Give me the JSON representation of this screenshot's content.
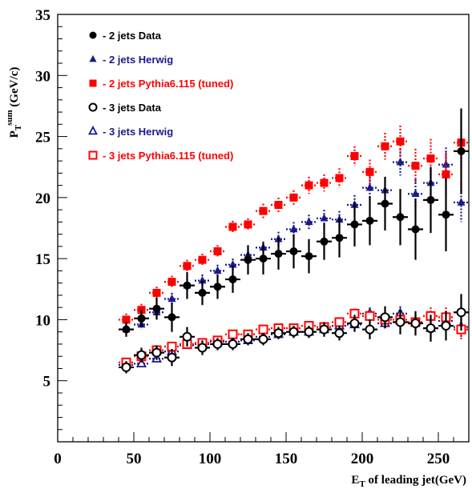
{
  "chart_data": {
    "type": "scatter",
    "xlabel": {
      "main": "E",
      "sub": "T",
      "rest": " of leading jet(GeV)"
    },
    "ylabel": {
      "main": "P",
      "sub": "T",
      "sup": "sum",
      "rest": " (GeV/c)"
    },
    "xlim": [
      0,
      270
    ],
    "ylim": [
      0,
      35
    ],
    "xticks": [
      0,
      50,
      100,
      150,
      200,
      250
    ],
    "yticks": [
      5,
      10,
      15,
      20,
      25,
      30,
      35
    ],
    "grid": false,
    "legend_position": "top-left",
    "colors": {
      "data": "#000000",
      "herwig": "#1a1a8c",
      "pythia": "#ff0000"
    },
    "series": [
      {
        "name": "- 2 jets Data",
        "marker": "filled-circle",
        "color": "#000000",
        "line": "solid",
        "x": [
          45,
          55,
          65,
          75,
          85,
          95,
          105,
          115,
          125,
          135,
          145,
          155,
          165,
          175,
          185,
          195,
          205,
          215,
          225,
          235,
          245,
          255,
          265
        ],
        "y": [
          9.2,
          10.1,
          10.9,
          10.2,
          12.8,
          12.2,
          12.7,
          13.3,
          14.9,
          15.0,
          15.4,
          15.6,
          15.2,
          16.4,
          16.7,
          17.8,
          18.1,
          19.5,
          18.4,
          17.4,
          19.8,
          18.6,
          23.8
        ],
        "err": [
          0.6,
          0.7,
          0.9,
          1.2,
          1.1,
          1.0,
          1.0,
          1.1,
          1.2,
          1.3,
          1.3,
          1.4,
          1.4,
          1.5,
          1.6,
          1.8,
          2.0,
          2.2,
          2.3,
          2.5,
          2.7,
          3.0,
          3.5
        ]
      },
      {
        "name": "- 2 jets Herwig",
        "marker": "filled-triangle",
        "color": "#1a1a8c",
        "line": "dotted",
        "x": [
          45,
          55,
          65,
          75,
          85,
          95,
          105,
          115,
          125,
          135,
          145,
          155,
          165,
          175,
          185,
          195,
          205,
          215,
          225,
          235,
          245,
          255,
          265
        ],
        "y": [
          9.2,
          9.6,
          10.6,
          11.7,
          12.8,
          13.2,
          14.0,
          14.5,
          15.3,
          15.9,
          16.6,
          17.4,
          18.0,
          18.3,
          18.2,
          19.4,
          20.8,
          20.6,
          22.9,
          20.3,
          21.2,
          22.7,
          19.6
        ],
        "err": [
          0.4,
          0.4,
          0.5,
          0.5,
          0.5,
          0.5,
          0.5,
          0.5,
          0.5,
          0.5,
          0.6,
          0.6,
          0.6,
          0.7,
          0.7,
          0.8,
          0.9,
          1.0,
          1.1,
          1.2,
          1.3,
          1.4,
          1.6
        ]
      },
      {
        "name": "- 2 jets Pythia6.115 (tuned)",
        "marker": "filled-square",
        "color": "#ff0000",
        "line": "dotted",
        "x": [
          45,
          55,
          65,
          75,
          85,
          95,
          105,
          115,
          125,
          135,
          145,
          155,
          165,
          175,
          185,
          195,
          205,
          215,
          225,
          235,
          245,
          255,
          265
        ],
        "y": [
          10.0,
          10.8,
          12.2,
          13.1,
          14.4,
          14.9,
          15.6,
          17.6,
          17.8,
          18.9,
          19.4,
          20.0,
          21.0,
          21.2,
          21.6,
          23.4,
          22.1,
          24.2,
          24.6,
          22.6,
          23.2,
          21.9,
          24.5
        ],
        "err": [
          0.5,
          0.5,
          0.5,
          0.5,
          0.5,
          0.5,
          0.5,
          0.5,
          0.5,
          0.6,
          0.6,
          0.6,
          0.7,
          0.7,
          0.8,
          0.8,
          1.0,
          1.1,
          1.3,
          1.4,
          1.6,
          1.8,
          2.2
        ]
      },
      {
        "name": "- 3 jets Data",
        "marker": "open-circle",
        "color": "#000000",
        "line": "solid",
        "x": [
          45,
          55,
          65,
          75,
          85,
          95,
          105,
          115,
          125,
          135,
          145,
          155,
          165,
          175,
          185,
          195,
          205,
          215,
          225,
          235,
          245,
          255,
          265
        ],
        "y": [
          6.1,
          7.1,
          7.3,
          6.9,
          8.6,
          7.7,
          8.0,
          8.0,
          8.4,
          8.4,
          8.9,
          9.0,
          9.0,
          9.2,
          8.9,
          9.7,
          9.2,
          10.2,
          9.8,
          9.7,
          9.3,
          9.5,
          10.6
        ],
        "err": [
          0.5,
          0.6,
          0.6,
          0.7,
          0.8,
          0.6,
          0.5,
          0.5,
          0.5,
          0.5,
          0.5,
          0.5,
          0.5,
          0.6,
          0.6,
          0.7,
          0.8,
          0.9,
          1.0,
          1.0,
          1.1,
          1.2,
          1.5
        ]
      },
      {
        "name": "- 3 jets Herwig",
        "marker": "open-triangle",
        "color": "#1a1a8c",
        "line": "dotted",
        "x": [
          45,
          55,
          65,
          75,
          85,
          95,
          105,
          115,
          125,
          135,
          145,
          155,
          165,
          175,
          185,
          195,
          205,
          215,
          225,
          235,
          245,
          255,
          265
        ],
        "y": [
          6.3,
          6.4,
          6.8,
          7.4,
          7.9,
          8.0,
          8.2,
          8.2,
          8.3,
          8.6,
          8.8,
          9.0,
          9.0,
          9.2,
          9.5,
          9.6,
          10.5,
          9.7,
          10.5,
          9.8,
          9.3,
          9.9,
          9.4
        ],
        "err": [
          0.3,
          0.3,
          0.3,
          0.3,
          0.3,
          0.3,
          0.3,
          0.3,
          0.3,
          0.3,
          0.3,
          0.3,
          0.3,
          0.4,
          0.4,
          0.4,
          0.5,
          0.5,
          0.6,
          0.6,
          0.7,
          0.8,
          0.9
        ]
      },
      {
        "name": "- 3 jets Pythia6.115 (tuned)",
        "marker": "open-square",
        "color": "#ff0000",
        "line": "dotted",
        "x": [
          45,
          55,
          65,
          75,
          85,
          95,
          105,
          115,
          125,
          135,
          145,
          155,
          165,
          175,
          185,
          195,
          205,
          215,
          225,
          235,
          245,
          255,
          265
        ],
        "y": [
          6.5,
          7.0,
          7.5,
          7.8,
          8.0,
          8.1,
          8.3,
          8.8,
          8.8,
          9.2,
          9.3,
          9.3,
          9.5,
          9.4,
          9.8,
          10.5,
          10.3,
          10.0,
          10.0,
          9.8,
          10.3,
          10.2,
          9.2
        ],
        "err": [
          0.3,
          0.3,
          0.3,
          0.3,
          0.3,
          0.3,
          0.3,
          0.3,
          0.3,
          0.3,
          0.3,
          0.3,
          0.3,
          0.3,
          0.4,
          0.4,
          0.5,
          0.5,
          0.5,
          0.6,
          0.7,
          0.8,
          0.9
        ]
      }
    ]
  }
}
